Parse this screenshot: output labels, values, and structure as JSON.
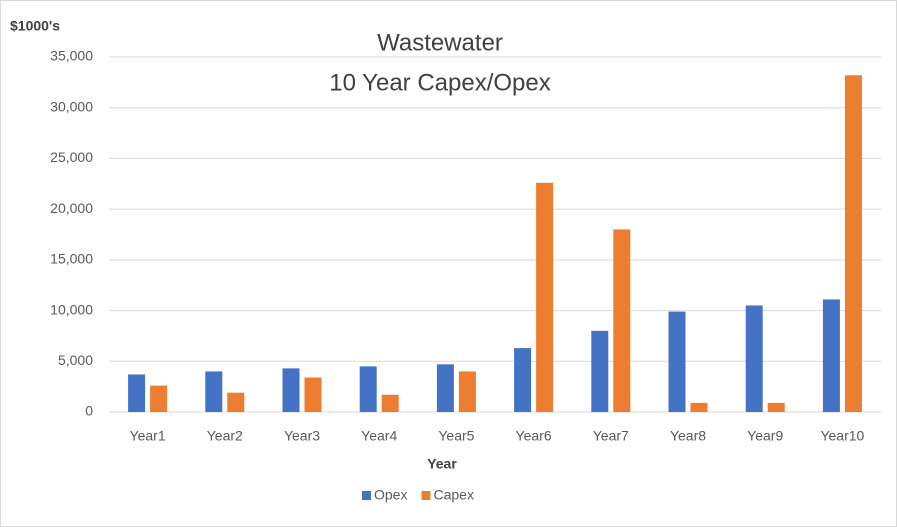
{
  "chart_data": {
    "type": "bar",
    "title": "Wastewater",
    "subtitle": "10 Year Capex/Opex",
    "y_label": "$1000's",
    "x_label": "Year",
    "categories": [
      "Year1",
      "Year2",
      "Year3",
      "Year4",
      "Year5",
      "Year6",
      "Year7",
      "Year8",
      "Year9",
      "Year10"
    ],
    "series": [
      {
        "name": "Opex",
        "color": "#4472c4",
        "values": [
          3700,
          4000,
          4300,
          4500,
          4700,
          6300,
          8000,
          9900,
          10500,
          11100
        ]
      },
      {
        "name": "Capex",
        "color": "#ed7d31",
        "values": [
          2600,
          1900,
          3400,
          1700,
          4000,
          22600,
          18000,
          900,
          900,
          33200
        ]
      }
    ],
    "ylim": [
      0,
      35000
    ],
    "yticks": [
      0,
      {
        "value": 5000,
        "label": "5,000"
      },
      {
        "value": 10000,
        "label": "10,000"
      },
      {
        "value": 15000,
        "label": "15,000"
      },
      {
        "value": 20000,
        "label": "20,000"
      },
      {
        "value": 25000,
        "label": "25,000"
      },
      {
        "value": 30000,
        "label": "30,000"
      },
      {
        "value": 35000,
        "label": "35,000"
      }
    ],
    "grid": true,
    "legend": "bottom"
  }
}
